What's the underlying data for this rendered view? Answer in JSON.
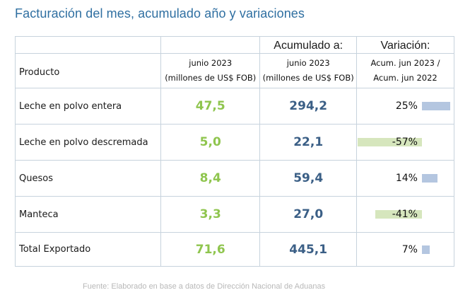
{
  "title": "Facturación del mes, acumulado año y variaciones",
  "header": {
    "acum_label": "Acumulado a:",
    "var_label": "Variación:",
    "product_label": "Producto",
    "month_line1": "junio 2023",
    "month_line2": "(millones de US$ FOB)",
    "acum_line1": "junio 2023",
    "acum_line2": "(millones de US$ FOB)",
    "var_line1": "Acum. jun 2023 /",
    "var_line2": "Acum. jun 2022"
  },
  "rows": [
    {
      "product": "Leche en polvo entera",
      "month": "47,5",
      "acum": "294,2",
      "variation": "25%",
      "variation_pct": 25
    },
    {
      "product": "Leche en polvo descremada",
      "month": "5,0",
      "acum": "22,1",
      "variation": "-57%",
      "variation_pct": -57
    },
    {
      "product": "Quesos",
      "month": "8,4",
      "acum": "59,4",
      "variation": "14%",
      "variation_pct": 14
    },
    {
      "product": "Manteca",
      "month": "3,3",
      "acum": "27,0",
      "variation": "-41%",
      "variation_pct": -41
    },
    {
      "product": "Total Exportado",
      "month": "71,6",
      "acum": "445,1",
      "variation": "7%",
      "variation_pct": 7
    }
  ],
  "colors": {
    "title": "#2f6fa1",
    "month_values": "#8fc54e",
    "acum_values": "#3b5f86",
    "positive_bar": "#b4c6e0",
    "negative_bar": "#d6e6bd"
  },
  "footnote": "Fuente: Elaborado en base a datos de Dirección Nacional de Aduanas"
}
